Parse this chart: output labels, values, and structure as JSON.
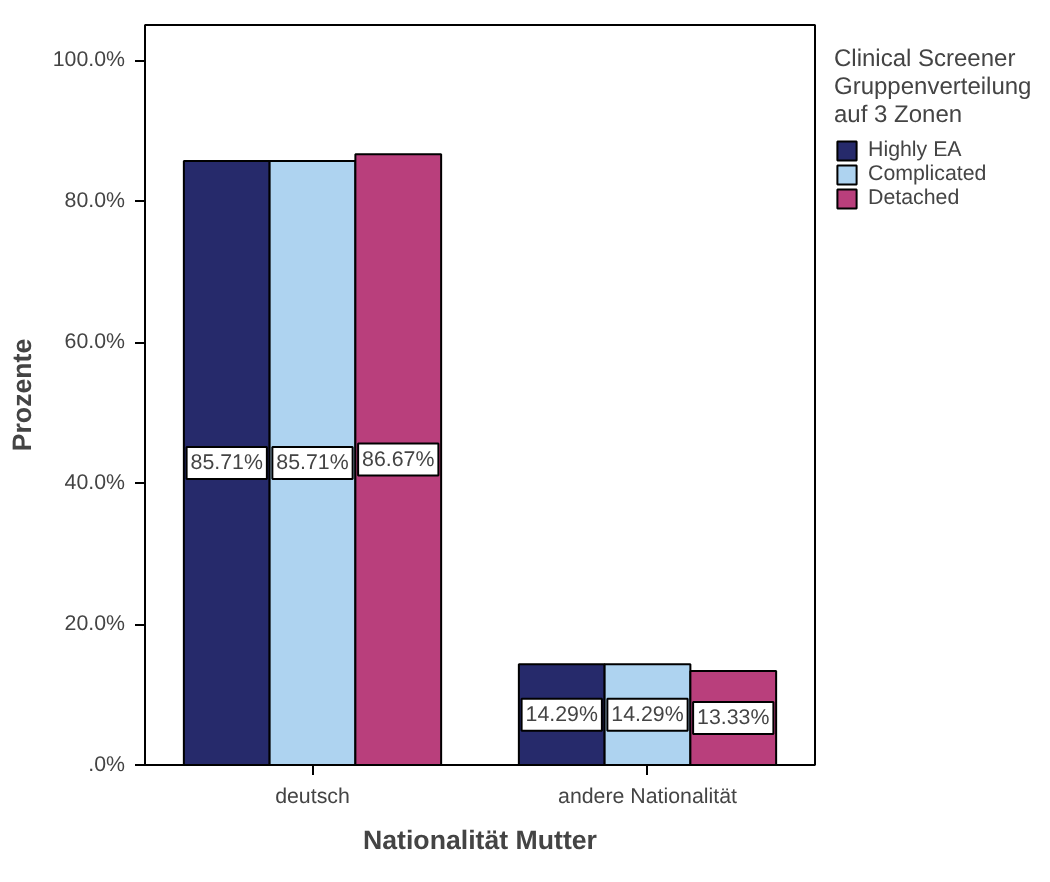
{
  "chart_data": {
    "type": "bar",
    "xlabel": "Nationalität Mutter",
    "ylabel": "Prozente",
    "legend_title": "Clinical Screener\nGruppenverteilung\nauf 3 Zonen",
    "categories": [
      "deutsch",
      "andere Nationalität"
    ],
    "series": [
      {
        "name": "Highly EA",
        "color": "#262a6b",
        "values": [
          85.71,
          14.29
        ],
        "value_labels": [
          "85.71%",
          "14.29%"
        ]
      },
      {
        "name": "Complicated",
        "color": "#aed3f0",
        "values": [
          85.71,
          14.29
        ],
        "value_labels": [
          "85.71%",
          "14.29%"
        ]
      },
      {
        "name": "Detached",
        "color": "#b93f7c",
        "values": [
          86.67,
          13.33
        ],
        "value_labels": [
          "86.67%",
          "13.33%"
        ]
      }
    ],
    "ylim": [
      0,
      105
    ],
    "yticks": [
      {
        "value": 0,
        "label": ".0%"
      },
      {
        "value": 20,
        "label": "20.0%"
      },
      {
        "value": 40,
        "label": "40.0%"
      },
      {
        "value": 60,
        "label": "60.0%"
      },
      {
        "value": 80,
        "label": "80.0%"
      },
      {
        "value": 100,
        "label": "100.0%"
      }
    ],
    "grid": false,
    "legend": "top right"
  }
}
